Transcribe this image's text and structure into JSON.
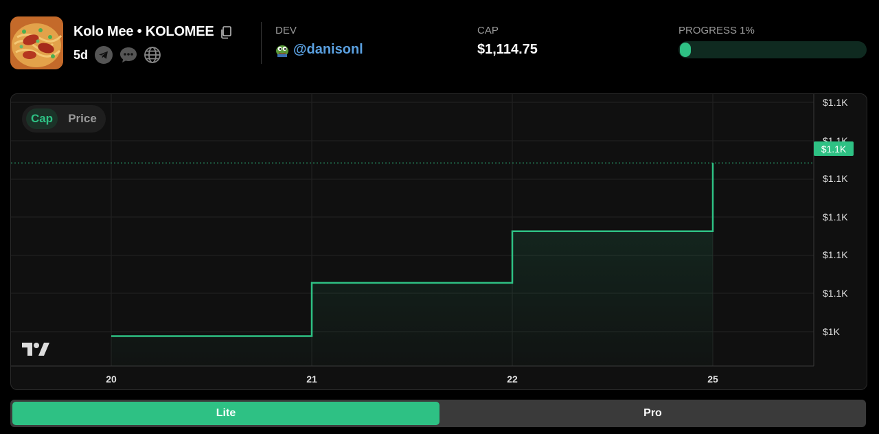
{
  "token": {
    "name": "Kolo Mee",
    "separator": "•",
    "ticker": "KOLOMEE",
    "age": "5d",
    "socials": [
      "telegram-icon",
      "chat-icon",
      "globe-icon"
    ]
  },
  "dev": {
    "label": "DEV",
    "handle": "@danisonl"
  },
  "cap": {
    "label": "CAP",
    "value": "$1,114.75"
  },
  "progress": {
    "label": "PROGRESS 1%",
    "percent": 1
  },
  "chart_toggle": {
    "options": [
      "Cap",
      "Price"
    ],
    "selected": "Cap"
  },
  "chart_data": {
    "type": "line",
    "step": true,
    "x_tick_labels": [
      "20",
      "21",
      "22",
      "25"
    ],
    "y_tick_labels": [
      "$1.1K",
      "$1.1K",
      "$1.1K",
      "$1.1K",
      "$1.1K",
      "$1.1K",
      "$1K"
    ],
    "current_value_label": "$1.1K",
    "points": [
      {
        "x": "20",
        "y": 1014
      },
      {
        "x": "21",
        "y": 1045
      },
      {
        "x": "22",
        "y": 1075
      },
      {
        "x": "25",
        "y": 1114.75
      }
    ],
    "ylim": [
      1003,
      1150
    ],
    "line_color": "#2ec184"
  },
  "modes": {
    "lite": "Lite",
    "pro": "Pro",
    "selected": "Lite"
  },
  "colors": {
    "accent": "#2ec184",
    "link": "#5aa0e0"
  }
}
